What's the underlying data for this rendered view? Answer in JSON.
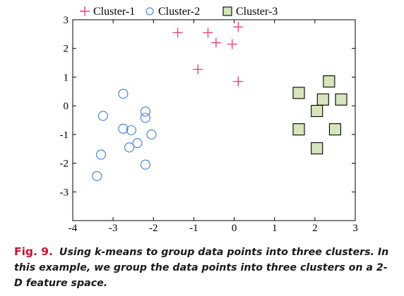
{
  "chart_data": {
    "type": "scatter",
    "title": "",
    "xlabel": "",
    "ylabel": "",
    "xlim": [
      -4,
      3
    ],
    "ylim": [
      -4,
      3
    ],
    "xticks": [
      -4,
      -3,
      -2,
      -1,
      0,
      1,
      2,
      3
    ],
    "yticks": [
      -3,
      -2,
      -1,
      0,
      1,
      2,
      3
    ],
    "grid": false,
    "legend_position": "top",
    "series": [
      {
        "name": "Cluster-1",
        "marker": "plus",
        "color": "#e8457a",
        "points": [
          [
            -1.4,
            2.55
          ],
          [
            -0.65,
            2.55
          ],
          [
            -0.45,
            2.2
          ],
          [
            0.1,
            2.75
          ],
          [
            -0.05,
            2.15
          ],
          [
            -0.9,
            1.27
          ],
          [
            0.1,
            0.85
          ]
        ]
      },
      {
        "name": "Cluster-2",
        "marker": "circle",
        "color": "#3a7bd5",
        "points": [
          [
            -2.75,
            0.42
          ],
          [
            -3.25,
            -0.35
          ],
          [
            -2.75,
            -0.8
          ],
          [
            -2.55,
            -0.85
          ],
          [
            -2.2,
            -0.2
          ],
          [
            -2.2,
            -0.42
          ],
          [
            -2.05,
            -1.0
          ],
          [
            -2.4,
            -1.3
          ],
          [
            -2.6,
            -1.45
          ],
          [
            -3.3,
            -1.7
          ],
          [
            -2.2,
            -2.05
          ],
          [
            -3.4,
            -2.45
          ]
        ]
      },
      {
        "name": "Cluster-3",
        "marker": "square",
        "color": "#d8e4bc",
        "points": [
          [
            1.6,
            0.45
          ],
          [
            2.35,
            0.85
          ],
          [
            2.2,
            0.22
          ],
          [
            2.65,
            0.22
          ],
          [
            2.05,
            -0.18
          ],
          [
            1.6,
            -0.82
          ],
          [
            2.5,
            -0.82
          ],
          [
            2.05,
            -1.48
          ]
        ]
      }
    ]
  },
  "caption": {
    "label": "Fig. 9.",
    "text": "Using k-means to group data points into three clusters. In this example, we group the data points into three clusters on a 2-D feature space."
  }
}
